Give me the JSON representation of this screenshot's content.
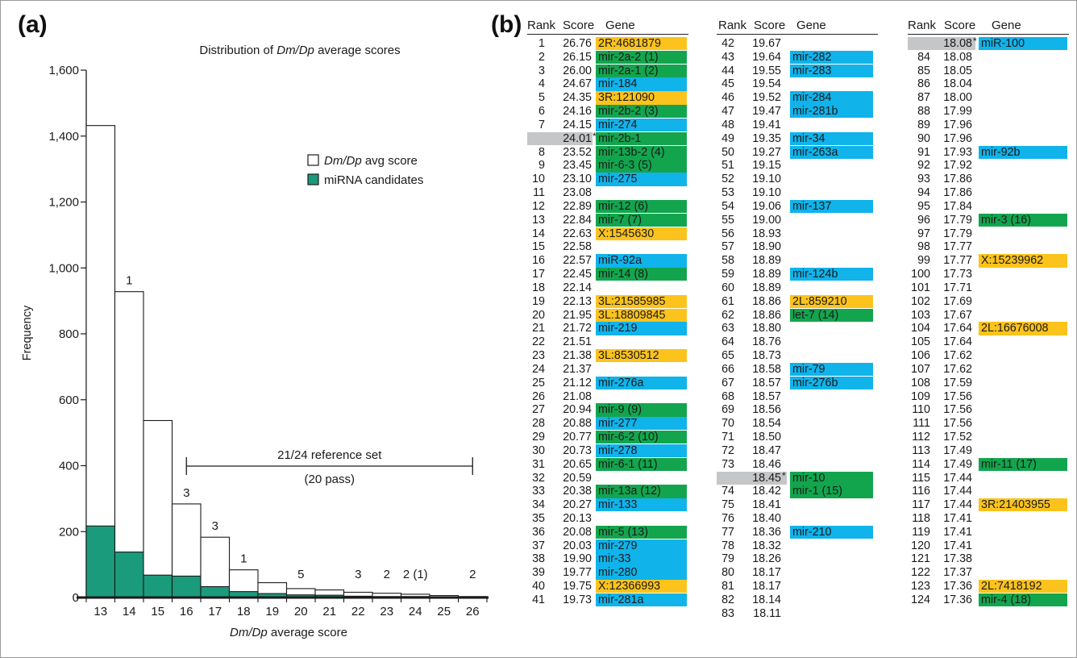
{
  "panel_a_label": "(a)",
  "panel_b_label": "(b)",
  "colors": {
    "bar_fill": "#ffffff",
    "candidate_fill": "#1a9b7c",
    "mirbase_gene": "#10b3ea",
    "candidate_gene": "#13a54e",
    "novel_gene": "#fbc31c",
    "highlight_row": "#c4c6c8"
  },
  "chart_data": {
    "type": "bar",
    "title_parts": [
      "Distribution of ",
      "Dm/Dp",
      " average scores"
    ],
    "xlabel_parts": [
      "Dm/Dp",
      " average score"
    ],
    "ylabel": "Frequency",
    "ylim": [
      0,
      1600
    ],
    "yticks": [
      "0",
      "200",
      "400",
      "600",
      "800",
      "1,000",
      "1,200",
      "1,400",
      "1,600"
    ],
    "categories": [
      "13",
      "14",
      "15",
      "16",
      "17",
      "18",
      "19",
      "20",
      "21",
      "22",
      "23",
      "24",
      "25",
      "26"
    ],
    "series": [
      {
        "name": "Dm/Dp avg score",
        "values": [
          1432,
          928,
          537,
          284,
          183,
          84,
          45,
          27,
          23,
          16,
          13,
          10,
          6,
          3
        ]
      },
      {
        "name": "miRNA candidates",
        "values": [
          217,
          138,
          68,
          65,
          33,
          18,
          12,
          8,
          7,
          4,
          3,
          3,
          0,
          0
        ]
      }
    ],
    "bar_annotations": [
      {
        "category": "14",
        "label": "1"
      },
      {
        "category": "16",
        "label": "3"
      },
      {
        "category": "17",
        "label": "3"
      },
      {
        "category": "18",
        "label": "1"
      },
      {
        "category": "20",
        "label": "5"
      },
      {
        "category": "22",
        "label": "3"
      },
      {
        "category": "23",
        "label": "2"
      },
      {
        "category": "24",
        "label": "2 (1)"
      },
      {
        "category": "26",
        "label": "2"
      }
    ],
    "legend": {
      "placement": "top-right",
      "entries": [
        [
          "Dm/Dp",
          " avg score"
        ],
        [
          "miRNA candidates"
        ]
      ]
    },
    "reference_set": {
      "from": 16,
      "to": 26,
      "line1": "21/24 reference set",
      "line2": "(20 pass)"
    },
    "grid": false
  },
  "table": {
    "headers": {
      "rank": "Rank",
      "score": "Score",
      "gene": "Gene"
    },
    "columns": [
      [
        {
          "r": "1",
          "s": "26.76",
          "g": "2R:4681879",
          "t": "n"
        },
        {
          "r": "2",
          "s": "26.15",
          "g": "mir-2a-2 (1)",
          "t": "c"
        },
        {
          "r": "3",
          "s": "26.00",
          "g": "mir-2a-1 (2)",
          "t": "c"
        },
        {
          "r": "4",
          "s": "24.67",
          "g": "mir-184",
          "t": "m"
        },
        {
          "r": "5",
          "s": "24.35",
          "g": "3R:121090",
          "t": "n"
        },
        {
          "r": "6",
          "s": "24.16",
          "g": "mir-2b-2 (3)",
          "t": "c"
        },
        {
          "r": "7",
          "s": "24.15",
          "g": "mir-274",
          "t": "m"
        },
        {
          "r": "",
          "s": "24.01",
          "g": "mir-2b-1",
          "t": "c",
          "hl": true
        },
        {
          "r": "8",
          "s": "23.52",
          "g": "mir-13b-2 (4)",
          "t": "c"
        },
        {
          "r": "9",
          "s": "23.45",
          "g": "mir-6-3 (5)",
          "t": "c"
        },
        {
          "r": "10",
          "s": "23.10",
          "g": "mir-275",
          "t": "m"
        },
        {
          "r": "11",
          "s": "23.08",
          "g": "",
          "t": ""
        },
        {
          "r": "12",
          "s": "22.89",
          "g": "mir-12 (6)",
          "t": "c"
        },
        {
          "r": "13",
          "s": "22.84",
          "g": "mir-7 (7)",
          "t": "c"
        },
        {
          "r": "14",
          "s": "22.63",
          "g": "X:1545630",
          "t": "n"
        },
        {
          "r": "15",
          "s": "22.58",
          "g": "",
          "t": ""
        },
        {
          "r": "16",
          "s": "22.57",
          "g": "miR-92a",
          "t": "m"
        },
        {
          "r": "17",
          "s": "22.45",
          "g": "mir-14 (8)",
          "t": "c"
        },
        {
          "r": "18",
          "s": "22.14",
          "g": "",
          "t": ""
        },
        {
          "r": "19",
          "s": "22.13",
          "g": "3L:21585985",
          "t": "n"
        },
        {
          "r": "20",
          "s": "21.95",
          "g": "3L:18809845",
          "t": "n"
        },
        {
          "r": "21",
          "s": "21.72",
          "g": "mir-219",
          "t": "m"
        },
        {
          "r": "22",
          "s": "21.51",
          "g": "",
          "t": ""
        },
        {
          "r": "23",
          "s": "21.38",
          "g": "3L:8530512",
          "t": "n"
        },
        {
          "r": "24",
          "s": "21.37",
          "g": "",
          "t": ""
        },
        {
          "r": "25",
          "s": "21.12",
          "g": "mir-276a",
          "t": "m"
        },
        {
          "r": "26",
          "s": "21.08",
          "g": "",
          "t": ""
        },
        {
          "r": "27",
          "s": "20.94",
          "g": "mir-9 (9)",
          "t": "c"
        },
        {
          "r": "28",
          "s": "20.88",
          "g": "mir-277",
          "t": "m"
        },
        {
          "r": "29",
          "s": "20.77",
          "g": "mir-6-2 (10)",
          "t": "c"
        },
        {
          "r": "30",
          "s": "20.73",
          "g": "mir-278",
          "t": "m"
        },
        {
          "r": "31",
          "s": "20.65",
          "g": "mir-6-1 (11)",
          "t": "c"
        },
        {
          "r": "32",
          "s": "20.59",
          "g": "",
          "t": ""
        },
        {
          "r": "33",
          "s": "20.38",
          "g": "mir-13a (12)",
          "t": "c"
        },
        {
          "r": "34",
          "s": "20.27",
          "g": "mir-133",
          "t": "m"
        },
        {
          "r": "35",
          "s": "20.13",
          "g": "",
          "t": ""
        },
        {
          "r": "36",
          "s": "20.08",
          "g": "mir-5 (13)",
          "t": "c"
        },
        {
          "r": "37",
          "s": "20.03",
          "g": "mir-279",
          "t": "m"
        },
        {
          "r": "38",
          "s": "19.90",
          "g": "mir-33",
          "t": "m"
        },
        {
          "r": "39",
          "s": "19.77",
          "g": "mir-280",
          "t": "m"
        },
        {
          "r": "40",
          "s": "19.75",
          "g": "X:12366993",
          "t": "n"
        },
        {
          "r": "41",
          "s": "19.73",
          "g": "mir-281a",
          "t": "m"
        }
      ],
      [
        {
          "r": "42",
          "s": "19.67",
          "g": "",
          "t": ""
        },
        {
          "r": "43",
          "s": "19.64",
          "g": "mir-282",
          "t": "m"
        },
        {
          "r": "44",
          "s": "19.55",
          "g": "mir-283",
          "t": "m"
        },
        {
          "r": "45",
          "s": "19.54",
          "g": "",
          "t": ""
        },
        {
          "r": "46",
          "s": "19.52",
          "g": "mir-284",
          "t": "m"
        },
        {
          "r": "47",
          "s": "19.47",
          "g": "mir-281b",
          "t": "m"
        },
        {
          "r": "48",
          "s": "19.41",
          "g": "",
          "t": ""
        },
        {
          "r": "49",
          "s": "19.35",
          "g": "mir-34",
          "t": "m"
        },
        {
          "r": "50",
          "s": "19.27",
          "g": "mir-263a",
          "t": "m"
        },
        {
          "r": "51",
          "s": "19.15",
          "g": "",
          "t": ""
        },
        {
          "r": "52",
          "s": "19.10",
          "g": "",
          "t": ""
        },
        {
          "r": "53",
          "s": "19.10",
          "g": "",
          "t": ""
        },
        {
          "r": "54",
          "s": "19.06",
          "g": "mir-137",
          "t": "m"
        },
        {
          "r": "55",
          "s": "19.00",
          "g": "",
          "t": ""
        },
        {
          "r": "56",
          "s": "18.93",
          "g": "",
          "t": ""
        },
        {
          "r": "57",
          "s": "18.90",
          "g": "",
          "t": ""
        },
        {
          "r": "58",
          "s": "18.89",
          "g": "",
          "t": ""
        },
        {
          "r": "59",
          "s": "18.89",
          "g": "mir-124b",
          "t": "m"
        },
        {
          "r": "60",
          "s": "18.89",
          "g": "",
          "t": ""
        },
        {
          "r": "61",
          "s": "18.86",
          "g": "2L:859210",
          "t": "n"
        },
        {
          "r": "62",
          "s": "18.86",
          "g": "let-7 (14)",
          "t": "c"
        },
        {
          "r": "63",
          "s": "18.80",
          "g": "",
          "t": ""
        },
        {
          "r": "64",
          "s": "18.76",
          "g": "",
          "t": ""
        },
        {
          "r": "65",
          "s": "18.73",
          "g": "",
          "t": ""
        },
        {
          "r": "66",
          "s": "18.58",
          "g": "mir-79",
          "t": "m"
        },
        {
          "r": "67",
          "s": "18.57",
          "g": "mir-276b",
          "t": "m"
        },
        {
          "r": "68",
          "s": "18.57",
          "g": "",
          "t": ""
        },
        {
          "r": "69",
          "s": "18.56",
          "g": "",
          "t": ""
        },
        {
          "r": "70",
          "s": "18.54",
          "g": "",
          "t": ""
        },
        {
          "r": "71",
          "s": "18.50",
          "g": "",
          "t": ""
        },
        {
          "r": "72",
          "s": "18.47",
          "g": "",
          "t": ""
        },
        {
          "r": "73",
          "s": "18.46",
          "g": "",
          "t": ""
        },
        {
          "r": "",
          "s": "18.45",
          "g": "mir-10",
          "t": "c",
          "hl": true
        },
        {
          "r": "74",
          "s": "18.42",
          "g": "mir-1 (15)",
          "t": "c"
        },
        {
          "r": "75",
          "s": "18.41",
          "g": "",
          "t": ""
        },
        {
          "r": "76",
          "s": "18.40",
          "g": "",
          "t": ""
        },
        {
          "r": "77",
          "s": "18.36",
          "g": "mir-210",
          "t": "m"
        },
        {
          "r": "78",
          "s": "18.32",
          "g": "",
          "t": ""
        },
        {
          "r": "79",
          "s": "18.26",
          "g": "",
          "t": ""
        },
        {
          "r": "80",
          "s": "18.17",
          "g": "",
          "t": ""
        },
        {
          "r": "81",
          "s": "18.17",
          "g": "",
          "t": ""
        },
        {
          "r": "82",
          "s": "18.14",
          "g": "",
          "t": ""
        },
        {
          "r": "83",
          "s": "18.11",
          "g": "",
          "t": ""
        }
      ],
      [
        {
          "r": "",
          "s": "18.08",
          "g": "miR-100",
          "t": "m",
          "hl": true
        },
        {
          "r": "84",
          "s": "18.08",
          "g": "",
          "t": ""
        },
        {
          "r": "85",
          "s": "18.05",
          "g": "",
          "t": ""
        },
        {
          "r": "86",
          "s": "18.04",
          "g": "",
          "t": ""
        },
        {
          "r": "87",
          "s": "18.00",
          "g": "",
          "t": ""
        },
        {
          "r": "88",
          "s": "17.99",
          "g": "",
          "t": ""
        },
        {
          "r": "89",
          "s": "17.96",
          "g": "",
          "t": ""
        },
        {
          "r": "90",
          "s": "17.96",
          "g": "",
          "t": ""
        },
        {
          "r": "91",
          "s": "17.93",
          "g": "mir-92b",
          "t": "m"
        },
        {
          "r": "92",
          "s": "17.92",
          "g": "",
          "t": ""
        },
        {
          "r": "93",
          "s": "17.86",
          "g": "",
          "t": ""
        },
        {
          "r": "94",
          "s": "17.86",
          "g": "",
          "t": ""
        },
        {
          "r": "95",
          "s": "17.84",
          "g": "",
          "t": ""
        },
        {
          "r": "96",
          "s": "17.79",
          "g": "mir-3 (16)",
          "t": "c"
        },
        {
          "r": "97",
          "s": "17.79",
          "g": "",
          "t": ""
        },
        {
          "r": "98",
          "s": "17.77",
          "g": "",
          "t": ""
        },
        {
          "r": "99",
          "s": "17.77",
          "g": "X:15239962",
          "t": "n"
        },
        {
          "r": "100",
          "s": "17.73",
          "g": "",
          "t": ""
        },
        {
          "r": "101",
          "s": "17.71",
          "g": "",
          "t": ""
        },
        {
          "r": "102",
          "s": "17.69",
          "g": "",
          "t": ""
        },
        {
          "r": "103",
          "s": "17.67",
          "g": "",
          "t": ""
        },
        {
          "r": "104",
          "s": "17.64",
          "g": "2L:16676008",
          "t": "n"
        },
        {
          "r": "105",
          "s": "17.64",
          "g": "",
          "t": ""
        },
        {
          "r": "106",
          "s": "17.62",
          "g": "",
          "t": ""
        },
        {
          "r": "107",
          "s": "17.62",
          "g": "",
          "t": ""
        },
        {
          "r": "108",
          "s": "17.59",
          "g": "",
          "t": ""
        },
        {
          "r": "109",
          "s": "17.56",
          "g": "",
          "t": ""
        },
        {
          "r": "110",
          "s": "17.56",
          "g": "",
          "t": ""
        },
        {
          "r": "111",
          "s": "17.56",
          "g": "",
          "t": ""
        },
        {
          "r": "112",
          "s": "17.52",
          "g": "",
          "t": ""
        },
        {
          "r": "113",
          "s": "17.49",
          "g": "",
          "t": ""
        },
        {
          "r": "114",
          "s": "17.49",
          "g": "mir-11 (17)",
          "t": "c"
        },
        {
          "r": "115",
          "s": "17.44",
          "g": "",
          "t": ""
        },
        {
          "r": "116",
          "s": "17.44",
          "g": "",
          "t": ""
        },
        {
          "r": "117",
          "s": "17.44",
          "g": "3R:21403955",
          "t": "n"
        },
        {
          "r": "118",
          "s": "17.41",
          "g": "",
          "t": ""
        },
        {
          "r": "119",
          "s": "17.41",
          "g": "",
          "t": ""
        },
        {
          "r": "120",
          "s": "17.41",
          "g": "",
          "t": ""
        },
        {
          "r": "121",
          "s": "17.38",
          "g": "",
          "t": ""
        },
        {
          "r": "122",
          "s": "17.37",
          "g": "",
          "t": ""
        },
        {
          "r": "123",
          "s": "17.36",
          "g": "2L:7418192",
          "t": "n"
        },
        {
          "r": "124",
          "s": "17.36",
          "g": "mir-4 (18)",
          "t": "c"
        }
      ]
    ]
  }
}
